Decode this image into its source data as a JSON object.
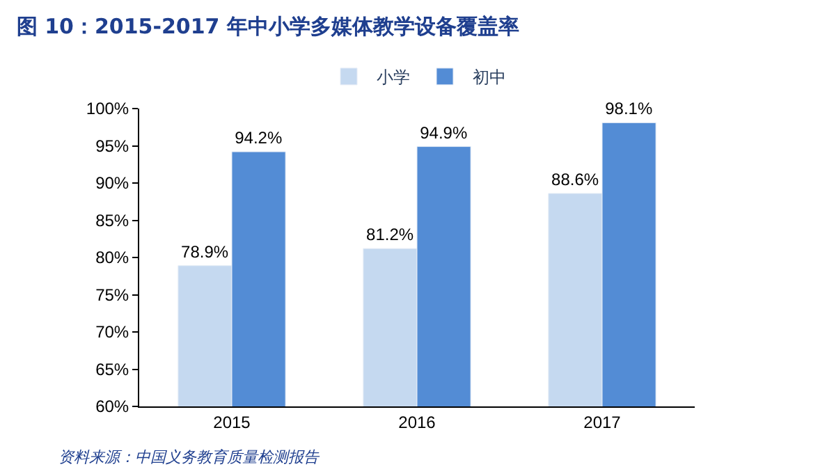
{
  "chart_data": {
    "type": "bar",
    "title": "图 10：2015-2017 年中小学多媒体教学设备覆盖率",
    "categories": [
      "2015",
      "2016",
      "2017"
    ],
    "series": [
      {
        "name": "小学",
        "color": "#c5d9f0",
        "values": [
          78.9,
          81.2,
          88.6
        ],
        "value_labels": [
          "78.9%",
          "81.2%",
          "88.6%"
        ]
      },
      {
        "name": "初中",
        "color": "#538cd5",
        "values": [
          94.2,
          94.9,
          98.1
        ],
        "value_labels": [
          "94.2%",
          "94.9%",
          "98.1%"
        ]
      }
    ],
    "ylim": [
      60,
      100
    ],
    "yticks": [
      {
        "value": 60,
        "label": "60%"
      },
      {
        "value": 65,
        "label": "65%"
      },
      {
        "value": 70,
        "label": "70%"
      },
      {
        "value": 75,
        "label": "75%"
      },
      {
        "value": 80,
        "label": "80%"
      },
      {
        "value": 85,
        "label": "85%"
      },
      {
        "value": 90,
        "label": "90%"
      },
      {
        "value": 95,
        "label": "95%"
      },
      {
        "value": 100,
        "label": "100%"
      }
    ],
    "legend": "top",
    "annotations": [
      "资料来源：中国义务教育质量检测报告"
    ]
  }
}
